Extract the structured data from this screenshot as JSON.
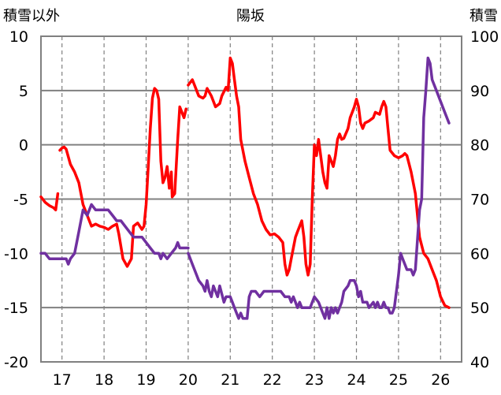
{
  "chart_data": {
    "type": "line",
    "title": "陽坂",
    "y_left_label": "積雪以外",
    "y_right_label": "積雪",
    "x_ticks": [
      "17",
      "18",
      "19",
      "20",
      "21",
      "22",
      "23",
      "24",
      "25",
      "26"
    ],
    "y_left_ticks": [
      "10",
      "5",
      "0",
      "-5",
      "-10",
      "-15",
      "-20"
    ],
    "y_right_ticks": [
      "100",
      "90",
      "80",
      "70",
      "60",
      "50",
      "40"
    ],
    "y_left_range": [
      -20,
      10
    ],
    "y_right_range": [
      40,
      100
    ],
    "x_range": [
      16.5,
      26.5
    ],
    "grid": {
      "vertical": "dashed",
      "horizontal": "solid"
    },
    "colors": {
      "left_series": "#ff0000",
      "right_series": "#7030a0",
      "grid": "#808080"
    },
    "series": [
      {
        "axis": "left",
        "color": "#ff0000",
        "segments": [
          [
            [
              16.5,
              -4.8
            ],
            [
              16.6,
              -5.3
            ],
            [
              16.7,
              -5.6
            ],
            [
              16.8,
              -5.8
            ],
            [
              16.85,
              -6.0
            ],
            [
              16.9,
              -4.5
            ]
          ],
          [
            [
              16.95,
              -0.5
            ],
            [
              17.0,
              -0.3
            ],
            [
              17.05,
              -0.2
            ],
            [
              17.1,
              -0.4
            ],
            [
              17.2,
              -1.8
            ],
            [
              17.3,
              -2.5
            ],
            [
              17.4,
              -3.5
            ],
            [
              17.5,
              -5.5
            ],
            [
              17.6,
              -6.5
            ],
            [
              17.7,
              -7.5
            ],
            [
              17.8,
              -7.3
            ],
            [
              17.9,
              -7.5
            ],
            [
              18.0,
              -7.6
            ],
            [
              18.1,
              -7.8
            ],
            [
              18.2,
              -7.5
            ],
            [
              18.3,
              -7.3
            ],
            [
              18.35,
              -8.2
            ],
            [
              18.45,
              -10.5
            ],
            [
              18.55,
              -11.2
            ],
            [
              18.65,
              -10.5
            ],
            [
              18.7,
              -7.5
            ],
            [
              18.8,
              -7.2
            ],
            [
              18.9,
              -7.8
            ],
            [
              18.95,
              -7.5
            ],
            [
              19.0,
              -5.5
            ],
            [
              19.05,
              -2.0
            ],
            [
              19.1,
              1.5
            ],
            [
              19.15,
              4.3
            ],
            [
              19.2,
              5.2
            ],
            [
              19.25,
              5.0
            ],
            [
              19.3,
              4.2
            ],
            [
              19.35,
              -1.5
            ],
            [
              19.4,
              -3.5
            ],
            [
              19.45,
              -3.0
            ],
            [
              19.5,
              -2.0
            ],
            [
              19.55,
              -4.0
            ],
            [
              19.6,
              -2.5
            ],
            [
              19.62,
              -4.8
            ],
            [
              19.68,
              -4.5
            ],
            [
              19.75,
              0.5
            ],
            [
              19.8,
              3.5
            ],
            [
              19.85,
              3.0
            ],
            [
              19.9,
              2.5
            ],
            [
              19.95,
              3.3
            ]
          ],
          [
            [
              20.0,
              5.5
            ],
            [
              20.1,
              6.0
            ],
            [
              20.15,
              5.5
            ],
            [
              20.2,
              5.0
            ],
            [
              20.25,
              4.5
            ],
            [
              20.35,
              4.3
            ],
            [
              20.4,
              4.5
            ],
            [
              20.45,
              5.2
            ],
            [
              20.55,
              4.5
            ],
            [
              20.65,
              3.5
            ],
            [
              20.75,
              3.8
            ],
            [
              20.8,
              4.5
            ],
            [
              20.9,
              5.3
            ],
            [
              20.95,
              5.0
            ],
            [
              21.0,
              8.0
            ],
            [
              21.05,
              7.5
            ],
            [
              21.1,
              6.0
            ],
            [
              21.15,
              4.5
            ],
            [
              21.2,
              3.5
            ],
            [
              21.25,
              0.5
            ],
            [
              21.35,
              -1.5
            ],
            [
              21.45,
              -3.0
            ],
            [
              21.55,
              -4.5
            ],
            [
              21.65,
              -5.5
            ],
            [
              21.75,
              -7.0
            ],
            [
              21.85,
              -7.8
            ],
            [
              21.95,
              -8.3
            ],
            [
              22.05,
              -8.2
            ],
            [
              22.15,
              -8.5
            ],
            [
              22.25,
              -9.0
            ],
            [
              22.3,
              -11.0
            ],
            [
              22.35,
              -12.0
            ],
            [
              22.4,
              -11.5
            ],
            [
              22.45,
              -10.5
            ],
            [
              22.5,
              -9.5
            ],
            [
              22.55,
              -8.5
            ],
            [
              22.6,
              -8.0
            ],
            [
              22.65,
              -7.5
            ],
            [
              22.7,
              -7.0
            ],
            [
              22.75,
              -8.5
            ],
            [
              22.8,
              -11.0
            ],
            [
              22.85,
              -12.0
            ],
            [
              22.9,
              -11.0
            ],
            [
              22.95,
              -5.0
            ],
            [
              23.0,
              0.0
            ],
            [
              23.05,
              -1.0
            ],
            [
              23.1,
              0.5
            ],
            [
              23.15,
              -1.0
            ],
            [
              23.2,
              -2.5
            ],
            [
              23.25,
              -3.5
            ],
            [
              23.3,
              -4.0
            ],
            [
              23.35,
              -1.0
            ],
            [
              23.4,
              -1.5
            ],
            [
              23.45,
              -2.0
            ],
            [
              23.5,
              -1.0
            ],
            [
              23.55,
              0.5
            ],
            [
              23.6,
              1.0
            ],
            [
              23.65,
              0.5
            ],
            [
              23.7,
              0.6
            ],
            [
              23.8,
              1.5
            ],
            [
              23.85,
              2.5
            ],
            [
              23.9,
              3.0
            ],
            [
              23.95,
              3.5
            ],
            [
              24.0,
              4.2
            ],
            [
              24.05,
              3.5
            ],
            [
              24.1,
              2.0
            ],
            [
              24.15,
              1.5
            ],
            [
              24.2,
              2.0
            ],
            [
              24.3,
              2.2
            ],
            [
              24.4,
              2.5
            ],
            [
              24.45,
              3.0
            ],
            [
              24.55,
              2.8
            ],
            [
              24.6,
              3.5
            ],
            [
              24.65,
              4.0
            ],
            [
              24.7,
              3.5
            ],
            [
              24.75,
              1.5
            ],
            [
              24.8,
              -0.5
            ],
            [
              24.9,
              -1.0
            ],
            [
              25.0,
              -1.2
            ],
            [
              25.1,
              -1.0
            ],
            [
              25.15,
              -0.8
            ],
            [
              25.2,
              -1.0
            ],
            [
              25.3,
              -2.5
            ],
            [
              25.4,
              -4.5
            ],
            [
              25.5,
              -8.5
            ],
            [
              25.6,
              -10.0
            ],
            [
              25.7,
              -10.5
            ],
            [
              25.8,
              -11.5
            ],
            [
              25.9,
              -12.5
            ],
            [
              26.0,
              -14.0
            ],
            [
              26.1,
              -14.8
            ],
            [
              26.2,
              -15.0
            ]
          ]
        ]
      },
      {
        "axis": "right",
        "color": "#7030a0",
        "segments": [
          [
            [
              16.5,
              60
            ],
            [
              16.6,
              60
            ],
            [
              16.7,
              59
            ],
            [
              16.8,
              59
            ],
            [
              16.9,
              59
            ],
            [
              17.0,
              59
            ],
            [
              17.1,
              59
            ],
            [
              17.15,
              58
            ],
            [
              17.2,
              59
            ],
            [
              17.3,
              60
            ],
            [
              17.35,
              62
            ],
            [
              17.4,
              64
            ],
            [
              17.5,
              68
            ],
            [
              17.6,
              67
            ],
            [
              17.65,
              68
            ],
            [
              17.7,
              69
            ],
            [
              17.8,
              68
            ],
            [
              17.9,
              68
            ],
            [
              18.0,
              68
            ],
            [
              18.1,
              68
            ],
            [
              18.2,
              67
            ],
            [
              18.3,
              66
            ],
            [
              18.4,
              66
            ],
            [
              18.5,
              65
            ],
            [
              18.6,
              64
            ],
            [
              18.7,
              63
            ],
            [
              18.8,
              63
            ],
            [
              18.9,
              63
            ],
            [
              19.0,
              62
            ],
            [
              19.1,
              61
            ],
            [
              19.2,
              60
            ],
            [
              19.3,
              60
            ],
            [
              19.35,
              59
            ],
            [
              19.4,
              60
            ],
            [
              19.5,
              59
            ],
            [
              19.6,
              60
            ],
            [
              19.7,
              61
            ],
            [
              19.75,
              62
            ],
            [
              19.8,
              61
            ],
            [
              19.9,
              61
            ],
            [
              20.0,
              61
            ]
          ],
          [
            [
              20.0,
              60
            ],
            [
              20.1,
              58
            ],
            [
              20.2,
              56
            ],
            [
              20.25,
              55
            ],
            [
              20.35,
              54
            ],
            [
              20.4,
              53
            ],
            [
              20.45,
              55
            ],
            [
              20.5,
              53
            ],
            [
              20.55,
              52
            ],
            [
              20.6,
              54
            ],
            [
              20.7,
              52
            ],
            [
              20.75,
              54
            ],
            [
              20.85,
              51
            ],
            [
              20.9,
              52
            ],
            [
              21.0,
              52
            ],
            [
              21.05,
              51
            ],
            [
              21.1,
              50
            ],
            [
              21.15,
              49
            ],
            [
              21.2,
              48
            ],
            [
              21.25,
              49
            ],
            [
              21.3,
              48
            ],
            [
              21.4,
              48
            ],
            [
              21.45,
              52
            ],
            [
              21.5,
              53
            ],
            [
              21.6,
              53
            ],
            [
              21.7,
              52
            ],
            [
              21.8,
              53
            ],
            [
              22.0,
              53
            ],
            [
              22.1,
              53
            ],
            [
              22.2,
              53
            ],
            [
              22.3,
              52
            ],
            [
              22.4,
              52
            ],
            [
              22.45,
              51
            ],
            [
              22.5,
              52
            ],
            [
              22.55,
              51
            ],
            [
              22.6,
              50
            ],
            [
              22.65,
              51
            ],
            [
              22.7,
              50
            ],
            [
              22.8,
              50
            ],
            [
              22.9,
              50
            ],
            [
              22.95,
              51
            ],
            [
              23.0,
              52
            ],
            [
              23.1,
              51
            ],
            [
              23.15,
              50
            ],
            [
              23.2,
              49
            ],
            [
              23.25,
              48
            ],
            [
              23.3,
              50
            ],
            [
              23.35,
              48
            ],
            [
              23.4,
              50
            ],
            [
              23.45,
              49
            ],
            [
              23.5,
              50
            ],
            [
              23.55,
              49
            ],
            [
              23.6,
              50
            ],
            [
              23.65,
              51
            ],
            [
              23.7,
              53
            ],
            [
              23.8,
              54
            ],
            [
              23.85,
              55
            ],
            [
              23.95,
              55
            ],
            [
              24.0,
              54
            ],
            [
              24.05,
              52
            ],
            [
              24.1,
              53
            ],
            [
              24.15,
              51
            ],
            [
              24.25,
              51
            ],
            [
              24.3,
              50
            ],
            [
              24.4,
              51
            ],
            [
              24.45,
              50
            ],
            [
              24.5,
              51
            ],
            [
              24.55,
              50
            ],
            [
              24.6,
              50
            ],
            [
              24.65,
              51
            ],
            [
              24.7,
              50
            ],
            [
              24.75,
              50
            ],
            [
              24.8,
              49
            ],
            [
              24.85,
              49
            ],
            [
              24.9,
              50
            ],
            [
              25.0,
              56
            ],
            [
              25.05,
              60
            ],
            [
              25.1,
              59
            ],
            [
              25.15,
              58
            ],
            [
              25.2,
              57
            ],
            [
              25.3,
              57
            ],
            [
              25.35,
              56
            ],
            [
              25.4,
              57
            ],
            [
              25.5,
              68
            ],
            [
              25.55,
              70
            ],
            [
              25.6,
              85
            ],
            [
              25.65,
              90
            ],
            [
              25.7,
              96
            ],
            [
              25.75,
              95
            ],
            [
              25.8,
              92
            ],
            [
              25.9,
              90
            ],
            [
              26.0,
              88
            ],
            [
              26.1,
              86
            ],
            [
              26.2,
              84
            ]
          ]
        ]
      }
    ]
  }
}
